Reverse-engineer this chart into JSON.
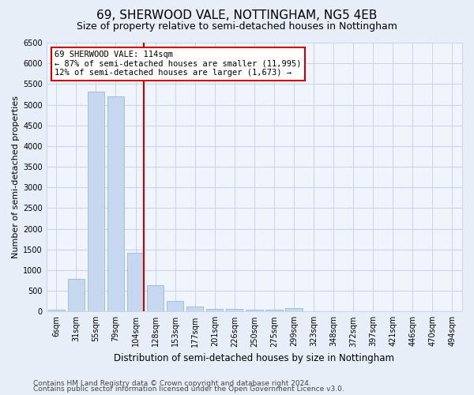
{
  "title": "69, SHERWOOD VALE, NOTTINGHAM, NG5 4EB",
  "subtitle": "Size of property relative to semi-detached houses in Nottingham",
  "xlabel": "Distribution of semi-detached houses by size in Nottingham",
  "ylabel": "Number of semi-detached properties",
  "categories": [
    "6sqm",
    "31sqm",
    "55sqm",
    "79sqm",
    "104sqm",
    "128sqm",
    "153sqm",
    "177sqm",
    "201sqm",
    "226sqm",
    "250sqm",
    "275sqm",
    "299sqm",
    "323sqm",
    "348sqm",
    "372sqm",
    "397sqm",
    "421sqm",
    "446sqm",
    "470sqm",
    "494sqm"
  ],
  "values": [
    50,
    790,
    5310,
    5210,
    1415,
    630,
    255,
    115,
    70,
    55,
    50,
    50,
    75,
    0,
    0,
    0,
    0,
    0,
    0,
    0,
    0
  ],
  "bar_color": "#c5d8f0",
  "bar_edge_color": "#9bb8d8",
  "vline_x_idx": 4,
  "vline_color": "#cc0000",
  "annotation_title": "69 SHERWOOD VALE: 114sqm",
  "annotation_line1": "← 87% of semi-detached houses are smaller (11,995)",
  "annotation_line2": "12% of semi-detached houses are larger (1,673) →",
  "annotation_box_color": "#ffffff",
  "annotation_box_edge": "#cc0000",
  "ylim": [
    0,
    6500
  ],
  "yticks": [
    0,
    500,
    1000,
    1500,
    2000,
    2500,
    3000,
    3500,
    4000,
    4500,
    5000,
    5500,
    6000,
    6500
  ],
  "footer1": "Contains HM Land Registry data © Crown copyright and database right 2024.",
  "footer2": "Contains public sector information licensed under the Open Government Licence v3.0.",
  "bg_color": "#e8eef8",
  "plot_bg_color": "#f0f4fc",
  "grid_color": "#c8d4e8",
  "title_fontsize": 11,
  "subtitle_fontsize": 9,
  "xlabel_fontsize": 8.5,
  "ylabel_fontsize": 8,
  "tick_fontsize": 7,
  "annot_fontsize": 7.5,
  "footer_fontsize": 6.5
}
